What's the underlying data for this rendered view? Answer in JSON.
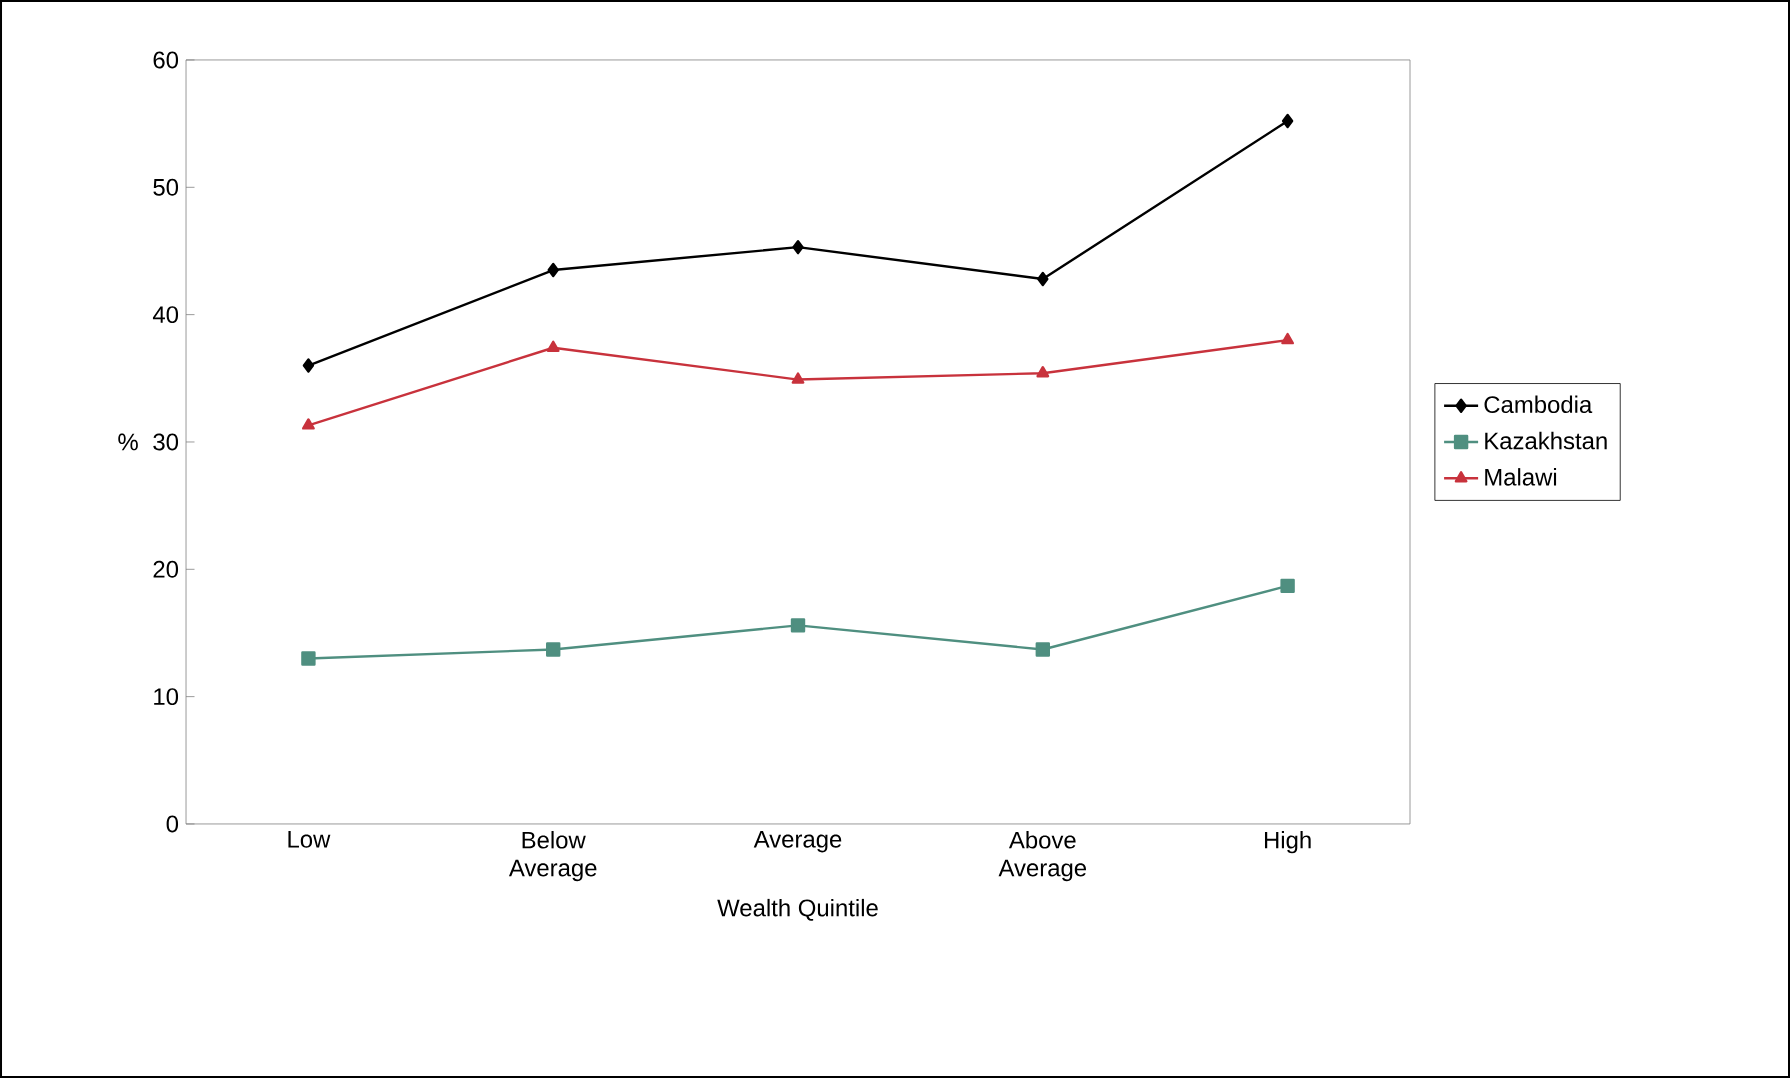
{
  "chart_data": {
    "type": "line",
    "xlabel": "Wealth Quintile",
    "ylabel": "%",
    "categories": [
      "Low",
      "Below Average",
      "Average",
      "Above Average",
      "High"
    ],
    "ylim": [
      0,
      60
    ],
    "yticks": [
      0,
      10,
      20,
      30,
      40,
      50,
      60
    ],
    "legend": "right",
    "grid": false,
    "series": [
      {
        "name": "Cambodia",
        "color": "#000000",
        "marker": "diamond",
        "values": [
          36,
          43.5,
          45.3,
          42.8,
          55.2
        ]
      },
      {
        "name": "Kazakhstan",
        "color": "#4f8f80",
        "marker": "square",
        "values": [
          13,
          13.7,
          15.6,
          13.7,
          18.7
        ]
      },
      {
        "name": "Malawi",
        "color": "#c8323c",
        "marker": "triangle",
        "values": [
          31.3,
          37.4,
          34.9,
          35.4,
          38
        ]
      }
    ]
  }
}
